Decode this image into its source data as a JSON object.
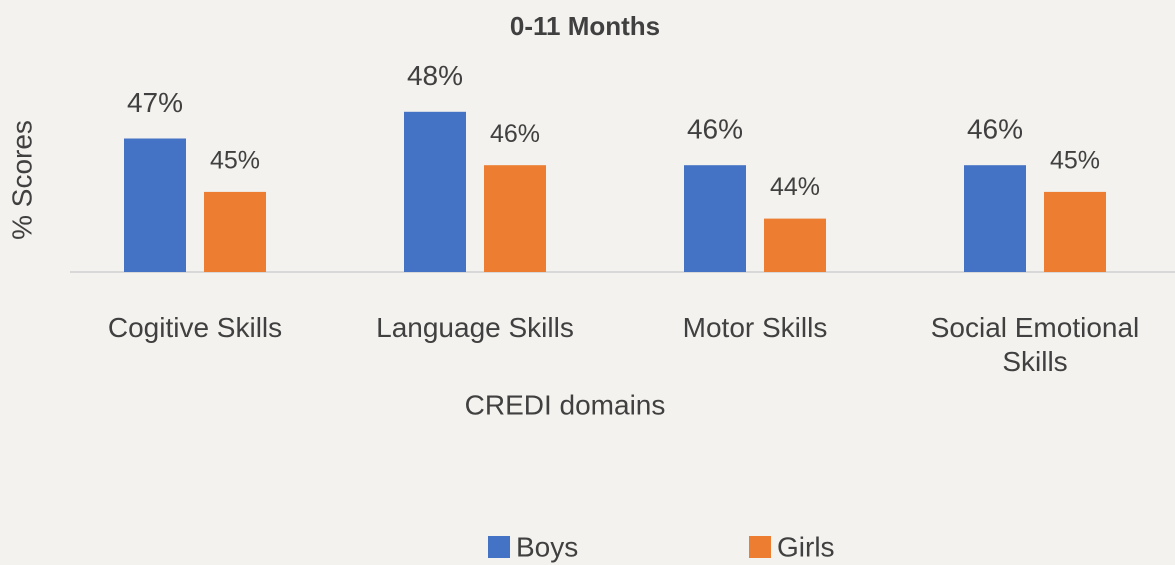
{
  "chart_data": {
    "type": "bar",
    "title": "0-11 Months",
    "x_label": "CREDI domains",
    "y_label": "% Scores",
    "categories": [
      "Cogitive Skills",
      "Language Skills",
      "Motor Skills",
      "Social Emotional Skills"
    ],
    "series": [
      {
        "name": "Boys",
        "color": "#4472c4",
        "values": [
          47,
          48,
          46,
          46
        ],
        "value_labels": [
          "47%",
          "48%",
          "46%",
          "46%"
        ]
      },
      {
        "name": "Girls",
        "color": "#ed7d31",
        "values": [
          45,
          46,
          44,
          45
        ],
        "value_labels": [
          "45%",
          "46%",
          "44%",
          "45%"
        ]
      }
    ],
    "ylim": [
      42,
      50
    ],
    "legend": "bottom"
  }
}
